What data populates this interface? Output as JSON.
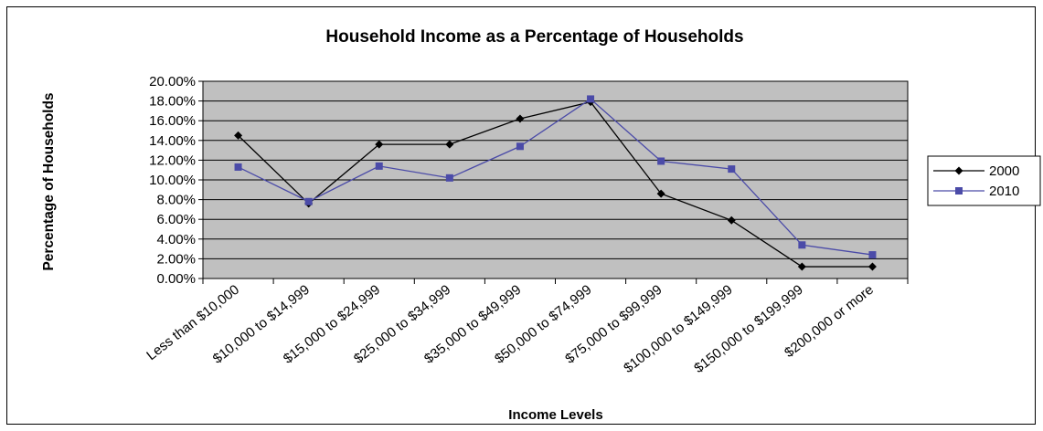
{
  "chart_data": {
    "type": "line",
    "title": "Household Income as a Percentage of Households",
    "xlabel": "Income Levels",
    "ylabel": "Percentage of Households",
    "categories": [
      "Less than $10,000",
      "$10,000 to $14,999",
      "$15,000 to $24,999",
      "$25,000 to $34,999",
      "$35,000 to $49,999",
      "$50,000 to $74,999",
      "$75,000 to $99,999",
      "$100,000 to $149,999",
      "$150,000 to $199,999",
      "$200,000 or more"
    ],
    "yticks": [
      "0.00%",
      "2.00%",
      "4.00%",
      "6.00%",
      "8.00%",
      "10.00%",
      "12.00%",
      "14.00%",
      "16.00%",
      "18.00%",
      "20.00%"
    ],
    "ylim": [
      0,
      20
    ],
    "grid": true,
    "legend_position": "right",
    "series": [
      {
        "name": "2000",
        "color": "#000000",
        "marker": "diamond",
        "values": [
          14.5,
          7.6,
          13.6,
          13.6,
          16.2,
          17.9,
          8.6,
          5.9,
          1.2,
          1.2
        ]
      },
      {
        "name": "2010",
        "color": "#4b4ba8",
        "marker": "square",
        "values": [
          11.3,
          7.8,
          11.4,
          10.2,
          13.4,
          18.2,
          11.9,
          11.1,
          3.4,
          2.4
        ]
      }
    ],
    "plot_background": "#c0c0c0"
  }
}
